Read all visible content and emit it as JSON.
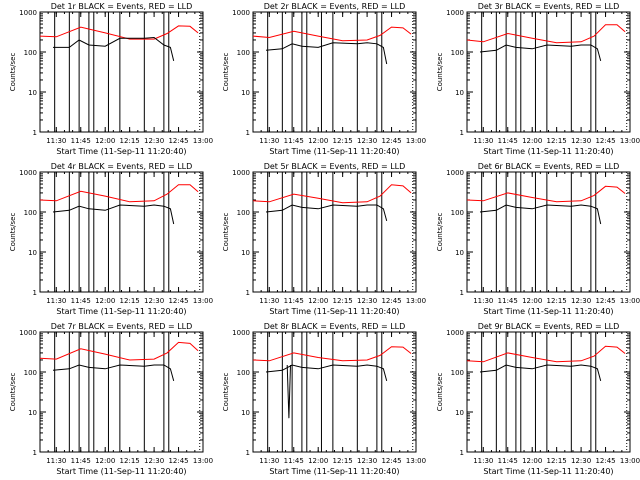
{
  "figure": {
    "xlabel": "Start Time (11-Sep-11 11:20:40)",
    "ylabel": "Counts/sec"
  },
  "colors": {
    "events": "#000000",
    "lld": "#ff0000",
    "axes": "#000000",
    "background": "#ffffff"
  },
  "chart_data": [
    {
      "type": "line",
      "title": "Det 1r BLACK = Events, RED = LLD",
      "xlabel": "Start Time (11-Sep-11 11:20:40)",
      "ylabel": "Counts/sec",
      "x_ticks": [
        "11:30",
        "11:45",
        "12:00",
        "12:15",
        "12:30",
        "12:45",
        "13:00"
      ],
      "y_ticks": [
        "1",
        "10",
        "100",
        "1000"
      ],
      "yscale": "log",
      "xlim": [
        "11:20",
        "13:00"
      ],
      "ylim": [
        1,
        1000
      ],
      "verticals": [
        "11:29",
        "11:38",
        "11:44",
        "11:50",
        "11:53",
        "12:02",
        "12:09",
        "12:24",
        "12:36",
        "12:39"
      ],
      "series": [
        {
          "color": "red",
          "x": [
            "11:20",
            "11:30",
            "11:45",
            "12:00",
            "12:15",
            "12:30",
            "12:38",
            "12:45",
            "12:52",
            "12:57"
          ],
          "values": [
            250,
            240,
            420,
            300,
            210,
            210,
            290,
            450,
            440,
            300
          ]
        },
        {
          "color": "black",
          "x": [
            "11:28",
            "11:38",
            "11:44",
            "11:50",
            "12:00",
            "12:09",
            "12:24",
            "12:30",
            "12:36",
            "12:40",
            "12:42"
          ],
          "values": [
            130,
            130,
            200,
            150,
            140,
            220,
            220,
            230,
            150,
            130,
            60
          ]
        }
      ]
    },
    {
      "type": "line",
      "title": "Det 2r BLACK = Events, RED = LLD",
      "xlabel": "Start Time (11-Sep-11 11:20:40)",
      "ylabel": "Counts/sec",
      "x_ticks": [
        "11:30",
        "11:45",
        "12:00",
        "12:15",
        "12:30",
        "12:45",
        "13:00"
      ],
      "y_ticks": [
        "1",
        "10",
        "100",
        "1000"
      ],
      "yscale": "log",
      "xlim": [
        "11:20",
        "13:00"
      ],
      "ylim": [
        1,
        1000
      ],
      "verticals": [
        "11:29",
        "11:38",
        "11:44",
        "11:50",
        "11:53",
        "12:02",
        "12:09",
        "12:24",
        "12:36",
        "12:39"
      ],
      "series": [
        {
          "color": "red",
          "x": [
            "11:20",
            "11:30",
            "11:45",
            "12:00",
            "12:15",
            "12:30",
            "12:38",
            "12:45",
            "12:52",
            "12:57"
          ],
          "values": [
            250,
            230,
            330,
            250,
            190,
            200,
            260,
            420,
            400,
            280
          ]
        },
        {
          "color": "black",
          "x": [
            "11:28",
            "11:38",
            "11:44",
            "11:50",
            "12:00",
            "12:09",
            "12:24",
            "12:30",
            "12:36",
            "12:40",
            "12:42"
          ],
          "values": [
            110,
            120,
            160,
            140,
            130,
            170,
            160,
            170,
            160,
            130,
            50
          ]
        }
      ]
    },
    {
      "type": "line",
      "title": "Det 3r BLACK = Events, RED = LLD",
      "xlabel": "Start Time (11-Sep-11 11:20:40)",
      "ylabel": "Counts/sec",
      "x_ticks": [
        "11:30",
        "11:45",
        "12:00",
        "12:15",
        "12:30",
        "12:45",
        "13:00"
      ],
      "y_ticks": [
        "1",
        "10",
        "100",
        "1000"
      ],
      "yscale": "log",
      "xlim": [
        "11:20",
        "13:00"
      ],
      "ylim": [
        1,
        1000
      ],
      "verticals": [
        "11:29",
        "11:38",
        "11:44",
        "11:50",
        "11:53",
        "12:02",
        "12:09",
        "12:24",
        "12:36",
        "12:39"
      ],
      "series": [
        {
          "color": "red",
          "x": [
            "11:20",
            "11:30",
            "11:45",
            "12:00",
            "12:15",
            "12:30",
            "12:38",
            "12:45",
            "12:52",
            "12:57"
          ],
          "values": [
            200,
            180,
            290,
            220,
            170,
            180,
            250,
            480,
            480,
            320
          ]
        },
        {
          "color": "black",
          "x": [
            "11:28",
            "11:38",
            "11:44",
            "11:50",
            "12:00",
            "12:09",
            "12:24",
            "12:30",
            "12:36",
            "12:40",
            "12:42"
          ],
          "values": [
            100,
            110,
            150,
            130,
            120,
            150,
            140,
            150,
            150,
            120,
            60
          ]
        }
      ]
    },
    {
      "type": "line",
      "title": "Det 4r BLACK = Events, RED = LLD",
      "xlabel": "Start Time (11-Sep-11 11:20:40)",
      "ylabel": "Counts/sec",
      "x_ticks": [
        "11:30",
        "11:45",
        "12:00",
        "12:15",
        "12:30",
        "12:45",
        "13:00"
      ],
      "y_ticks": [
        "1",
        "10",
        "100",
        "1000"
      ],
      "yscale": "log",
      "xlim": [
        "11:20",
        "13:00"
      ],
      "ylim": [
        1,
        1000
      ],
      "verticals": [
        "11:29",
        "11:38",
        "11:44",
        "11:50",
        "11:53",
        "12:02",
        "12:09",
        "12:24",
        "12:36",
        "12:39"
      ],
      "series": [
        {
          "color": "red",
          "x": [
            "11:20",
            "11:30",
            "11:45",
            "12:00",
            "12:15",
            "12:30",
            "12:38",
            "12:45",
            "12:52",
            "12:57"
          ],
          "values": [
            200,
            190,
            330,
            250,
            180,
            190,
            280,
            480,
            480,
            320
          ]
        },
        {
          "color": "black",
          "x": [
            "11:28",
            "11:38",
            "11:44",
            "11:50",
            "12:00",
            "12:09",
            "12:24",
            "12:30",
            "12:36",
            "12:40",
            "12:42"
          ],
          "values": [
            100,
            110,
            140,
            120,
            110,
            150,
            140,
            150,
            140,
            120,
            50
          ]
        }
      ]
    },
    {
      "type": "line",
      "title": "Det 5r BLACK = Events, RED = LLD",
      "xlabel": "Start Time (11-Sep-11 11:20:40)",
      "ylabel": "Counts/sec",
      "x_ticks": [
        "11:30",
        "11:45",
        "12:00",
        "12:15",
        "12:30",
        "12:45",
        "13:00"
      ],
      "y_ticks": [
        "1",
        "10",
        "100",
        "1000"
      ],
      "yscale": "log",
      "xlim": [
        "11:20",
        "13:00"
      ],
      "ylim": [
        1,
        1000
      ],
      "verticals": [
        "11:29",
        "11:38",
        "11:44",
        "11:50",
        "11:53",
        "12:02",
        "12:09",
        "12:24",
        "12:36",
        "12:39"
      ],
      "series": [
        {
          "color": "red",
          "x": [
            "11:20",
            "11:30",
            "11:45",
            "12:00",
            "12:15",
            "12:30",
            "12:38",
            "12:45",
            "12:52",
            "12:57"
          ],
          "values": [
            190,
            180,
            280,
            220,
            170,
            180,
            250,
            480,
            450,
            300
          ]
        },
        {
          "color": "black",
          "x": [
            "11:28",
            "11:38",
            "11:44",
            "11:50",
            "12:00",
            "12:09",
            "12:24",
            "12:30",
            "12:36",
            "12:40",
            "12:42"
          ],
          "values": [
            100,
            110,
            150,
            130,
            120,
            150,
            140,
            150,
            150,
            120,
            60
          ]
        }
      ]
    },
    {
      "type": "line",
      "title": "Det 6r BLACK = Events, RED = LLD",
      "xlabel": "Start Time (11-Sep-11 11:20:40)",
      "ylabel": "Counts/sec",
      "x_ticks": [
        "11:30",
        "11:45",
        "12:00",
        "12:15",
        "12:30",
        "12:45",
        "13:00"
      ],
      "y_ticks": [
        "1",
        "10",
        "100",
        "1000"
      ],
      "yscale": "log",
      "xlim": [
        "11:20",
        "13:00"
      ],
      "ylim": [
        1,
        1000
      ],
      "verticals": [
        "11:29",
        "11:38",
        "11:44",
        "11:50",
        "11:53",
        "12:02",
        "12:09",
        "12:24",
        "12:36",
        "12:39"
      ],
      "series": [
        {
          "color": "red",
          "x": [
            "11:20",
            "11:30",
            "11:45",
            "12:00",
            "12:15",
            "12:30",
            "12:38",
            "12:45",
            "12:52",
            "12:57"
          ],
          "values": [
            200,
            190,
            300,
            230,
            180,
            190,
            260,
            440,
            420,
            290
          ]
        },
        {
          "color": "black",
          "x": [
            "11:28",
            "11:38",
            "11:44",
            "11:50",
            "12:00",
            "12:09",
            "12:24",
            "12:30",
            "12:36",
            "12:40",
            "12:42"
          ],
          "values": [
            100,
            110,
            150,
            130,
            120,
            150,
            140,
            150,
            140,
            120,
            50
          ]
        }
      ]
    },
    {
      "type": "line",
      "title": "Det 7r BLACK = Events, RED = LLD",
      "xlabel": "Start Time (11-Sep-11 11:20:40)",
      "ylabel": "Counts/sec",
      "x_ticks": [
        "11:30",
        "11:45",
        "12:00",
        "12:15",
        "12:30",
        "12:45",
        "13:00"
      ],
      "y_ticks": [
        "1",
        "10",
        "100",
        "1000"
      ],
      "yscale": "log",
      "xlim": [
        "11:20",
        "13:00"
      ],
      "ylim": [
        1,
        1000
      ],
      "verticals": [
        "11:29",
        "11:38",
        "11:44",
        "11:50",
        "11:53",
        "12:02",
        "12:09",
        "12:24",
        "12:36",
        "12:39"
      ],
      "series": [
        {
          "color": "red",
          "x": [
            "11:20",
            "11:30",
            "11:45",
            "12:00",
            "12:15",
            "12:30",
            "12:38",
            "12:45",
            "12:52",
            "12:57"
          ],
          "values": [
            220,
            210,
            380,
            280,
            200,
            210,
            300,
            550,
            520,
            340
          ]
        },
        {
          "color": "black",
          "x": [
            "11:28",
            "11:38",
            "11:44",
            "11:50",
            "12:00",
            "12:09",
            "12:24",
            "12:30",
            "12:36",
            "12:40",
            "12:42"
          ],
          "values": [
            110,
            120,
            150,
            130,
            120,
            150,
            140,
            150,
            150,
            120,
            60
          ]
        }
      ]
    },
    {
      "type": "line",
      "title": "Det 8r BLACK = Events, RED = LLD",
      "xlabel": "Start Time (11-Sep-11 11:20:40)",
      "ylabel": "Counts/sec",
      "x_ticks": [
        "11:30",
        "11:45",
        "12:00",
        "12:15",
        "12:30",
        "12:45",
        "13:00"
      ],
      "y_ticks": [
        "1",
        "10",
        "100",
        "1000"
      ],
      "yscale": "log",
      "xlim": [
        "11:20",
        "13:00"
      ],
      "ylim": [
        1,
        1000
      ],
      "verticals": [
        "11:29",
        "11:38",
        "11:44",
        "11:50",
        "11:53",
        "12:02",
        "12:09",
        "12:24",
        "12:36",
        "12:39"
      ],
      "series": [
        {
          "color": "red",
          "x": [
            "11:20",
            "11:30",
            "11:45",
            "12:00",
            "12:15",
            "12:30",
            "12:38",
            "12:45",
            "12:52",
            "12:57"
          ],
          "values": [
            200,
            190,
            300,
            230,
            190,
            200,
            260,
            430,
            420,
            290
          ]
        },
        {
          "color": "black",
          "x": [
            "11:28",
            "11:38",
            "11:44",
            "11:50",
            "12:00",
            "12:09",
            "12:24",
            "12:30",
            "12:36",
            "12:40",
            "12:42"
          ],
          "values": [
            100,
            110,
            150,
            130,
            120,
            150,
            140,
            150,
            140,
            120,
            60
          ]
        },
        {
          "color": "black",
          "x": [
            "11:41",
            "11:42",
            "11:43"
          ],
          "values": [
            150,
            7,
            150
          ]
        }
      ]
    },
    {
      "type": "line",
      "title": "Det 9r BLACK = Events, RED = LLD",
      "xlabel": "Start Time (11-Sep-11 11:20:40)",
      "ylabel": "Counts/sec",
      "x_ticks": [
        "11:30",
        "11:45",
        "12:00",
        "12:15",
        "12:30",
        "12:45",
        "13:00"
      ],
      "y_ticks": [
        "1",
        "10",
        "100",
        "1000"
      ],
      "yscale": "log",
      "xlim": [
        "11:20",
        "13:00"
      ],
      "ylim": [
        1,
        1000
      ],
      "verticals": [
        "11:29",
        "11:38",
        "11:44",
        "11:50",
        "11:53",
        "12:02",
        "12:09",
        "12:24",
        "12:36",
        "12:39"
      ],
      "series": [
        {
          "color": "red",
          "x": [
            "11:20",
            "11:30",
            "11:45",
            "12:00",
            "12:15",
            "12:30",
            "12:38",
            "12:45",
            "12:52",
            "12:57"
          ],
          "values": [
            190,
            180,
            300,
            230,
            180,
            190,
            250,
            440,
            420,
            290
          ]
        },
        {
          "color": "black",
          "x": [
            "11:28",
            "11:38",
            "11:44",
            "11:50",
            "12:00",
            "12:09",
            "12:24",
            "12:30",
            "12:36",
            "12:40",
            "12:42"
          ],
          "values": [
            100,
            110,
            150,
            130,
            120,
            150,
            140,
            150,
            140,
            120,
            60
          ]
        }
      ]
    }
  ]
}
